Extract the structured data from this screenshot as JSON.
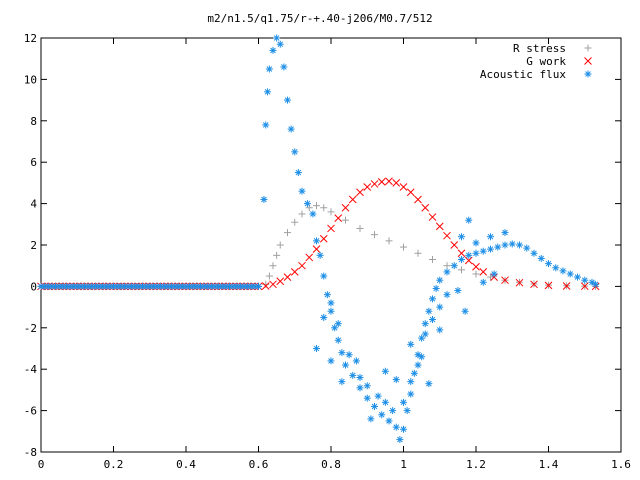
{
  "chart_data": {
    "type": "scatter",
    "title": "m2/n1.5/q1.75/r-+.40-j206/M0.7/512",
    "xlabel": "",
    "ylabel": "",
    "xlim": [
      0,
      1.6
    ],
    "ylim": [
      -8,
      12
    ],
    "x_ticks": [
      "0",
      "0.2",
      "0.4",
      "0.6",
      "0.8",
      "1",
      "1.2",
      "1.4",
      "1.6"
    ],
    "y_ticks": [
      "-8",
      "-6",
      "-4",
      "-2",
      "0",
      "2",
      "4",
      "6",
      "8",
      "10",
      "12"
    ],
    "grid": false,
    "legend_position": "top-right",
    "series": [
      {
        "name": "R stress",
        "marker": "+",
        "color": "#a0a0a0",
        "points": [
          [
            0.0,
            0.0
          ],
          [
            0.1,
            0.0
          ],
          [
            0.2,
            0.0
          ],
          [
            0.3,
            0.0
          ],
          [
            0.4,
            0.0
          ],
          [
            0.5,
            0.0
          ],
          [
            0.6,
            0.0
          ],
          [
            0.62,
            0.1
          ],
          [
            0.63,
            0.5
          ],
          [
            0.64,
            1.0
          ],
          [
            0.65,
            1.5
          ],
          [
            0.66,
            2.0
          ],
          [
            0.68,
            2.6
          ],
          [
            0.7,
            3.1
          ],
          [
            0.72,
            3.5
          ],
          [
            0.74,
            3.8
          ],
          [
            0.76,
            3.9
          ],
          [
            0.78,
            3.8
          ],
          [
            0.8,
            3.6
          ],
          [
            0.84,
            3.2
          ],
          [
            0.88,
            2.8
          ],
          [
            0.92,
            2.5
          ],
          [
            0.96,
            2.2
          ],
          [
            1.0,
            1.9
          ],
          [
            1.04,
            1.6
          ],
          [
            1.08,
            1.3
          ],
          [
            1.12,
            1.0
          ],
          [
            1.16,
            0.8
          ],
          [
            1.2,
            0.6
          ],
          [
            1.24,
            0.45
          ],
          [
            1.28,
            0.3
          ],
          [
            1.32,
            0.2
          ],
          [
            1.36,
            0.12
          ],
          [
            1.4,
            0.06
          ],
          [
            1.45,
            0.03
          ],
          [
            1.5,
            0.01
          ],
          [
            1.53,
            0.0
          ]
        ]
      },
      {
        "name": "G work",
        "marker": "x",
        "color": "#ff0000",
        "points": [
          [
            0.0,
            0.0
          ],
          [
            0.1,
            0.0
          ],
          [
            0.2,
            0.0
          ],
          [
            0.3,
            0.0
          ],
          [
            0.4,
            0.0
          ],
          [
            0.5,
            0.0
          ],
          [
            0.6,
            0.0
          ],
          [
            0.62,
            0.02
          ],
          [
            0.64,
            0.1
          ],
          [
            0.66,
            0.25
          ],
          [
            0.68,
            0.45
          ],
          [
            0.7,
            0.7
          ],
          [
            0.72,
            1.0
          ],
          [
            0.74,
            1.4
          ],
          [
            0.76,
            1.8
          ],
          [
            0.78,
            2.3
          ],
          [
            0.8,
            2.8
          ],
          [
            0.82,
            3.3
          ],
          [
            0.84,
            3.8
          ],
          [
            0.86,
            4.2
          ],
          [
            0.88,
            4.55
          ],
          [
            0.9,
            4.8
          ],
          [
            0.92,
            4.95
          ],
          [
            0.94,
            5.05
          ],
          [
            0.96,
            5.08
          ],
          [
            0.98,
            5.0
          ],
          [
            1.0,
            4.8
          ],
          [
            1.02,
            4.55
          ],
          [
            1.04,
            4.2
          ],
          [
            1.06,
            3.8
          ],
          [
            1.08,
            3.35
          ],
          [
            1.1,
            2.9
          ],
          [
            1.12,
            2.45
          ],
          [
            1.14,
            2.0
          ],
          [
            1.16,
            1.6
          ],
          [
            1.18,
            1.25
          ],
          [
            1.2,
            0.95
          ],
          [
            1.22,
            0.7
          ],
          [
            1.25,
            0.45
          ],
          [
            1.28,
            0.3
          ],
          [
            1.32,
            0.18
          ],
          [
            1.36,
            0.1
          ],
          [
            1.4,
            0.05
          ],
          [
            1.45,
            0.02
          ],
          [
            1.5,
            0.01
          ],
          [
            1.53,
            0.0
          ]
        ]
      },
      {
        "name": "Acoustic flux",
        "marker": "*",
        "color": "#1e8fe6",
        "points": [
          [
            0.0,
            0.0
          ],
          [
            0.05,
            0.0
          ],
          [
            0.1,
            0.0
          ],
          [
            0.15,
            0.0
          ],
          [
            0.2,
            0.0
          ],
          [
            0.25,
            0.0
          ],
          [
            0.3,
            0.0
          ],
          [
            0.35,
            0.0
          ],
          [
            0.4,
            0.0
          ],
          [
            0.45,
            0.0
          ],
          [
            0.5,
            0.0
          ],
          [
            0.55,
            0.0
          ],
          [
            0.6,
            0.0
          ],
          [
            0.615,
            4.2
          ],
          [
            0.62,
            7.8
          ],
          [
            0.625,
            9.4
          ],
          [
            0.63,
            10.5
          ],
          [
            0.64,
            11.4
          ],
          [
            0.65,
            12.0
          ],
          [
            0.66,
            11.7
          ],
          [
            0.67,
            10.6
          ],
          [
            0.68,
            9.0
          ],
          [
            0.69,
            7.6
          ],
          [
            0.7,
            6.5
          ],
          [
            0.71,
            5.5
          ],
          [
            0.72,
            4.6
          ],
          [
            0.735,
            4.0
          ],
          [
            0.75,
            3.5
          ],
          [
            0.76,
            2.2
          ],
          [
            0.77,
            1.5
          ],
          [
            0.78,
            0.5
          ],
          [
            0.79,
            -0.4
          ],
          [
            0.8,
            -1.2
          ],
          [
            0.81,
            -2.0
          ],
          [
            0.82,
            -2.6
          ],
          [
            0.83,
            -3.2
          ],
          [
            0.84,
            -3.8
          ],
          [
            0.86,
            -4.3
          ],
          [
            0.88,
            -4.9
          ],
          [
            0.9,
            -5.4
          ],
          [
            0.92,
            -5.8
          ],
          [
            0.94,
            -6.2
          ],
          [
            0.96,
            -6.5
          ],
          [
            0.98,
            -6.8
          ],
          [
            0.99,
            -7.4
          ],
          [
            1.0,
            -6.9
          ],
          [
            1.01,
            -6.0
          ],
          [
            1.02,
            -5.2
          ],
          [
            1.03,
            -4.2
          ],
          [
            1.04,
            -3.3
          ],
          [
            1.05,
            -2.5
          ],
          [
            1.06,
            -1.8
          ],
          [
            1.07,
            -1.2
          ],
          [
            1.08,
            -0.6
          ],
          [
            1.09,
            -0.1
          ],
          [
            1.1,
            0.3
          ],
          [
            1.12,
            0.7
          ],
          [
            1.14,
            1.0
          ],
          [
            1.16,
            1.3
          ],
          [
            1.18,
            1.5
          ],
          [
            1.2,
            1.6
          ],
          [
            1.22,
            1.7
          ],
          [
            1.24,
            1.8
          ],
          [
            1.26,
            1.9
          ],
          [
            1.28,
            2.0
          ],
          [
            1.3,
            2.05
          ],
          [
            1.32,
            2.0
          ],
          [
            1.34,
            1.85
          ],
          [
            1.36,
            1.6
          ],
          [
            1.38,
            1.35
          ],
          [
            1.4,
            1.1
          ],
          [
            1.42,
            0.9
          ],
          [
            1.44,
            0.75
          ],
          [
            1.46,
            0.6
          ],
          [
            1.48,
            0.45
          ],
          [
            1.5,
            0.3
          ],
          [
            1.52,
            0.2
          ],
          [
            1.53,
            0.1
          ],
          [
            0.8,
            -0.8
          ],
          [
            0.82,
            -1.8
          ],
          [
            0.85,
            -3.3
          ],
          [
            0.88,
            -4.4
          ],
          [
            0.9,
            -4.8
          ],
          [
            0.93,
            -5.3
          ],
          [
            0.95,
            -5.6
          ],
          [
            0.97,
            -6.0
          ],
          [
            1.0,
            -5.6
          ],
          [
            1.02,
            -4.6
          ],
          [
            1.04,
            -3.8
          ],
          [
            1.06,
            -2.3
          ],
          [
            1.08,
            -1.6
          ],
          [
            1.1,
            -1.0
          ],
          [
            1.12,
            -0.4
          ],
          [
            1.15,
            -0.2
          ],
          [
            1.17,
            -1.2
          ],
          [
            1.18,
            3.2
          ],
          [
            1.16,
            2.4
          ],
          [
            1.2,
            2.1
          ],
          [
            1.24,
            2.4
          ],
          [
            1.28,
            2.6
          ],
          [
            1.22,
            0.2
          ],
          [
            1.25,
            0.6
          ],
          [
            0.76,
            -3.0
          ],
          [
            0.78,
            -1.5
          ],
          [
            0.8,
            -3.6
          ],
          [
            0.83,
            -4.6
          ],
          [
            0.87,
            -3.6
          ],
          [
            0.91,
            -6.4
          ],
          [
            0.95,
            -4.1
          ],
          [
            0.98,
            -4.5
          ],
          [
            1.02,
            -2.8
          ],
          [
            1.05,
            -3.4
          ],
          [
            1.07,
            -4.7
          ],
          [
            1.1,
            -2.1
          ]
        ]
      }
    ]
  }
}
